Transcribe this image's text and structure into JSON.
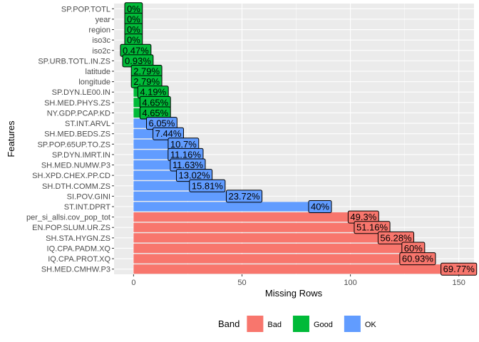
{
  "chart_data": {
    "type": "bar",
    "orientation": "horizontal",
    "xlabel": "Missing Rows",
    "ylabel": "Features",
    "xlim": [
      -9,
      157
    ],
    "x_ticks": [
      0,
      50,
      100,
      150
    ],
    "grid": true,
    "legend": {
      "title": "Band",
      "placement": "bottom",
      "entries": [
        {
          "name": "Bad",
          "color": "#F8766D"
        },
        {
          "name": "Good",
          "color": "#00BA38"
        },
        {
          "name": "OK",
          "color": "#619CFF"
        }
      ]
    },
    "bars": [
      {
        "feature": "SP.POP.TOTL",
        "value": 0,
        "label": "0%",
        "band": "Good"
      },
      {
        "feature": "year",
        "value": 0,
        "label": "0%",
        "band": "Good"
      },
      {
        "feature": "region",
        "value": 0,
        "label": "0%",
        "band": "Good"
      },
      {
        "feature": "iso3c",
        "value": 0,
        "label": "0%",
        "band": "Good"
      },
      {
        "feature": "iso2c",
        "value": 1,
        "label": "0.47%",
        "band": "Good"
      },
      {
        "feature": "SP.URB.TOTL.IN.ZS",
        "value": 2,
        "label": "0.93%",
        "band": "Good"
      },
      {
        "feature": "latitude",
        "value": 6,
        "label": "2.79%",
        "band": "Good"
      },
      {
        "feature": "longitude",
        "value": 6,
        "label": "2.79%",
        "band": "Good"
      },
      {
        "feature": "SP.DYN.LE00.IN",
        "value": 9,
        "label": "4.19%",
        "band": "Good"
      },
      {
        "feature": "SH.MED.PHYS.ZS",
        "value": 10,
        "label": "4.65%",
        "band": "Good"
      },
      {
        "feature": "NY.GDP.PCAP.KD",
        "value": 10,
        "label": "4.65%",
        "band": "Good"
      },
      {
        "feature": "ST.INT.ARVL",
        "value": 13,
        "label": "6.05%",
        "band": "OK"
      },
      {
        "feature": "SH.MED.BEDS.ZS",
        "value": 16,
        "label": "7.44%",
        "band": "OK"
      },
      {
        "feature": "SP.POP.65UP.TO.ZS",
        "value": 23,
        "label": "10.7%",
        "band": "OK"
      },
      {
        "feature": "SP.DYN.IMRT.IN",
        "value": 24,
        "label": "11.16%",
        "band": "OK"
      },
      {
        "feature": "SH.MED.NUMW.P3",
        "value": 25,
        "label": "11.63%",
        "band": "OK"
      },
      {
        "feature": "SH.XPD.CHEX.PP.CD",
        "value": 28,
        "label": "13.02%",
        "band": "OK"
      },
      {
        "feature": "SH.DTH.COMM.ZS",
        "value": 34,
        "label": "15.81%",
        "band": "OK"
      },
      {
        "feature": "SI.POV.GINI",
        "value": 51,
        "label": "23.72%",
        "band": "OK"
      },
      {
        "feature": "ST.INT.DPRT",
        "value": 86,
        "label": "40%",
        "band": "OK"
      },
      {
        "feature": "per_si_allsi.cov_pop_tot",
        "value": 106,
        "label": "49.3%",
        "band": "Bad"
      },
      {
        "feature": "EN.POP.SLUM.UR.ZS",
        "value": 110,
        "label": "51.16%",
        "band": "Bad"
      },
      {
        "feature": "SH.STA.HYGN.ZS",
        "value": 121,
        "label": "56.28%",
        "band": "Bad"
      },
      {
        "feature": "IQ.CPA.PADM.XQ",
        "value": 129,
        "label": "60%",
        "band": "Bad"
      },
      {
        "feature": "IQ.CPA.PROT.XQ",
        "value": 131,
        "label": "60.93%",
        "band": "Bad"
      },
      {
        "feature": "SH.MED.CMHW.P3",
        "value": 150,
        "label": "69.77%",
        "band": "Bad"
      }
    ]
  }
}
